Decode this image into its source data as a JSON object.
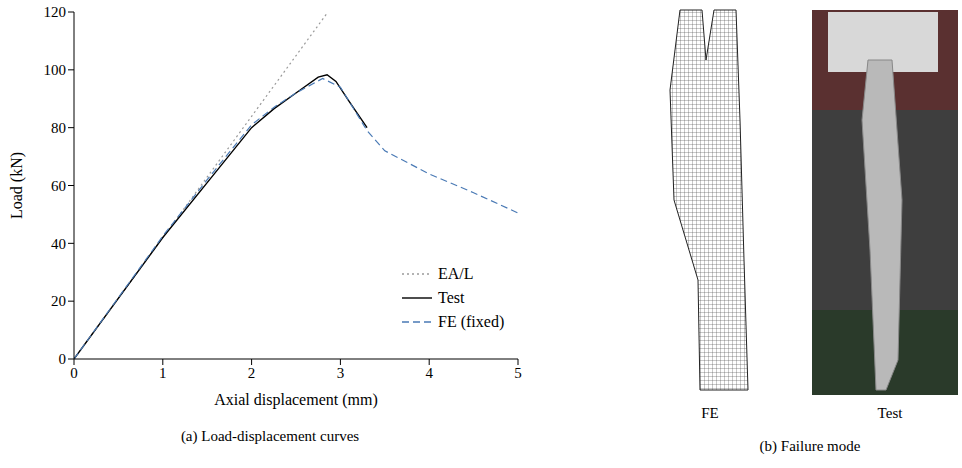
{
  "chart_data": {
    "type": "line",
    "title": "(a) Load-displacement curves",
    "x_label": "Axial displacement (mm)",
    "y_label": "Load (kN)",
    "xlim": [
      0,
      5
    ],
    "ylim": [
      0,
      120
    ],
    "xticks": [
      0,
      1,
      2,
      3,
      4,
      5
    ],
    "yticks": [
      0,
      20,
      40,
      60,
      80,
      100,
      120
    ],
    "grid": false,
    "legend": "lower right",
    "series": [
      {
        "name": "EA/L",
        "color": "#9a9a9a",
        "line_style": "dotted",
        "x": [
          0,
          2.86
        ],
        "values": [
          0,
          120
        ]
      },
      {
        "name": "Test",
        "color": "#000000",
        "line_style": "solid",
        "x": [
          0,
          1,
          1.5,
          2,
          2.25,
          2.5,
          2.75,
          2.85,
          2.95,
          3.1,
          3.3
        ],
        "values": [
          0,
          42,
          61,
          80,
          86.5,
          92,
          97.5,
          98.3,
          96,
          89,
          80
        ]
      },
      {
        "name": "FE (fixed)",
        "color": "#4a7ab5",
        "line_style": "dashed",
        "x": [
          0,
          1,
          1.5,
          2,
          2.25,
          2.5,
          2.8,
          3,
          3.3,
          3.5,
          4,
          4.5,
          5
        ],
        "values": [
          0,
          42.5,
          62,
          81,
          87,
          92,
          97,
          94,
          79,
          72,
          64,
          57.5,
          50.5
        ]
      }
    ]
  },
  "figure": {
    "panel_b": {
      "caption": "(b) Failure mode",
      "labels": [
        "FE",
        "Test"
      ]
    }
  }
}
